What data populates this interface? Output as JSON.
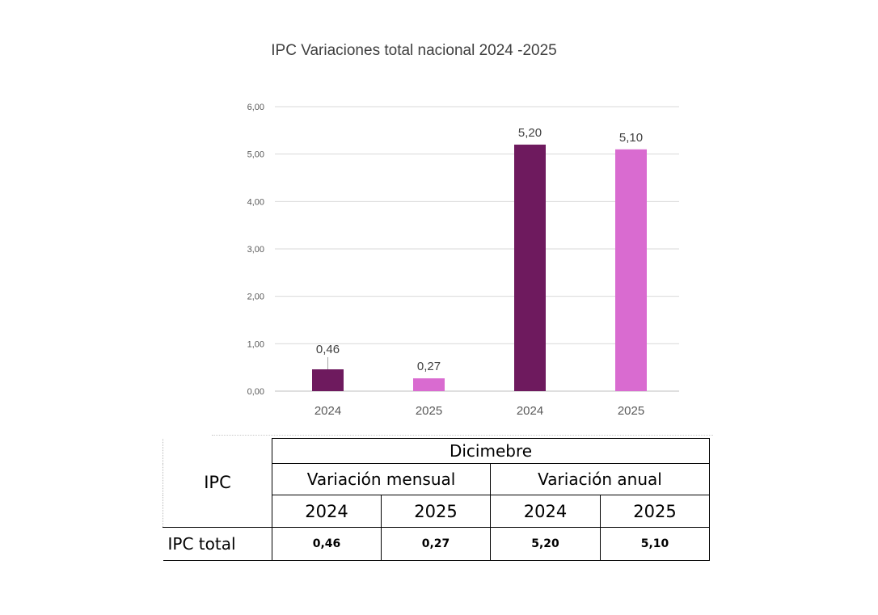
{
  "chart_data": {
    "type": "bar",
    "title": "IPC Variaciones total nacional 2024 -2025",
    "categories": [
      "2024",
      "2025",
      "2024",
      "2025"
    ],
    "values": [
      0.46,
      0.27,
      5.2,
      5.1
    ],
    "data_labels": [
      "0,46",
      "0,27",
      "5,20",
      "5,10"
    ],
    "bar_colors": [
      "#6e1a5e",
      "#d96bd0",
      "#6e1a5e",
      "#d96bd0"
    ],
    "ylim": [
      0,
      6
    ],
    "yticks": [
      0,
      1,
      2,
      3,
      4,
      5,
      6
    ],
    "ytick_labels": [
      "0,00",
      "1,00",
      "2,00",
      "3,00",
      "4,00",
      "5,00",
      "6,00"
    ],
    "grid": true,
    "xlabel": "",
    "ylabel": ""
  },
  "table": {
    "row_header": "IPC",
    "period": "Dicimebre",
    "group1": "Variación mensual",
    "group2": "Variación anual",
    "years": [
      "2024",
      "2025",
      "2024",
      "2025"
    ],
    "row_label": "IPC total",
    "values": [
      "0,46",
      "0,27",
      "5,20",
      "5,10"
    ]
  }
}
